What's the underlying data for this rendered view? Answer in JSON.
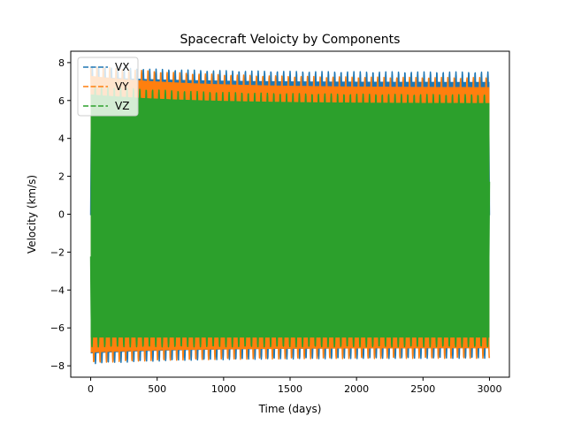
{
  "chart_data": {
    "type": "line",
    "title": "Spacecraft Veloicty by Components",
    "xlabel": "Time (days)",
    "ylabel": "Velocity (km/s)",
    "xlim": [
      -150,
      3150
    ],
    "ylim": [
      -8.6,
      8.6
    ],
    "x_ticks": [
      0,
      500,
      1000,
      1500,
      2000,
      2500,
      3000
    ],
    "y_ticks": [
      -8,
      -6,
      -4,
      -2,
      0,
      2,
      4,
      6,
      8
    ],
    "x_range": [
      0,
      3000
    ],
    "grid": false,
    "legend_position": "upper-left",
    "series": [
      {
        "name": "VX",
        "color": "#1f77b4",
        "linestyle": "dashed",
        "envelope_max": [
          7.8,
          7.5
        ],
        "envelope_min": [
          -7.9,
          -7.6
        ],
        "period_days": 48
      },
      {
        "name": "VY",
        "color": "#ff7f0e",
        "linestyle": "dashed",
        "envelope_max": [
          7.85,
          7.2
        ],
        "envelope_min": [
          -7.85,
          -7.6
        ],
        "period_days": 48
      },
      {
        "name": "VZ",
        "color": "#2ca02c",
        "linestyle": "dashed",
        "envelope_max": [
          6.8,
          6.3
        ],
        "envelope_min": [
          -7.0,
          -7.0
        ],
        "period_days": 48
      }
    ]
  }
}
